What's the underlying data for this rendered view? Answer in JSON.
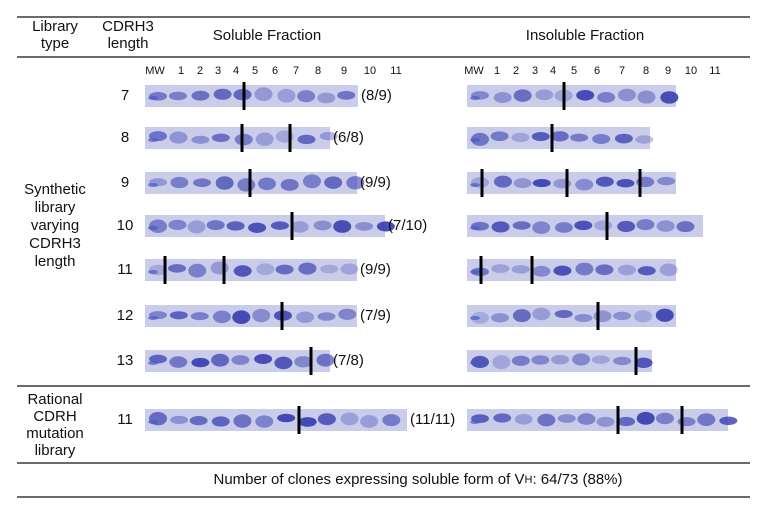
{
  "header": {
    "library_type": [
      "Library",
      "type"
    ],
    "cdrh3_length": [
      "CDRH3",
      "length"
    ],
    "soluble": "Soluble Fraction",
    "insoluble": "Insoluble Fraction"
  },
  "lanes": [
    "MW",
    "1",
    "2",
    "3",
    "4",
    "5",
    "6",
    "7",
    "8",
    "9",
    "10",
    "11"
  ],
  "groups": [
    {
      "label": [
        "Synthetic",
        "library",
        "varying",
        "CDRH3",
        "length"
      ],
      "rows": [
        {
          "length": "7",
          "ratio": "(8/9)"
        },
        {
          "length": "8",
          "ratio": "(6/8)"
        },
        {
          "length": "9",
          "ratio": "(9/9)"
        },
        {
          "length": "10",
          "ratio": "(7/10)"
        },
        {
          "length": "11",
          "ratio": "(9/9)"
        },
        {
          "length": "12",
          "ratio": "(7/9)"
        },
        {
          "length": "13",
          "ratio": "(7/8)"
        }
      ]
    },
    {
      "label": [
        "Rational",
        "CDRH",
        "mutation",
        "library"
      ],
      "rows": [
        {
          "length": "11",
          "ratio": "(11/11)"
        }
      ]
    }
  ],
  "footer": {
    "before": "Number of clones expressing soluble form of V",
    "subscript": "H",
    "after": ": 64/73 (88%)"
  }
}
